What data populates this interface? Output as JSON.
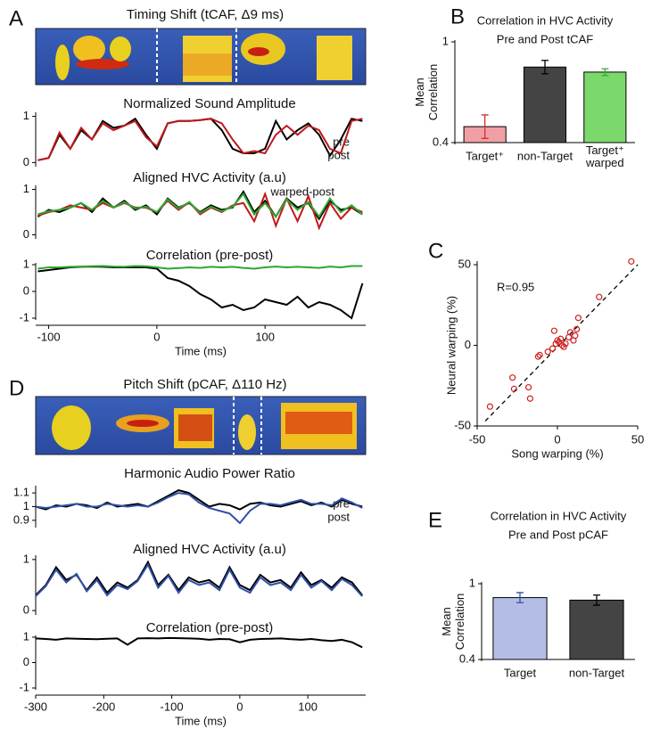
{
  "panels": [
    {
      "label": "A",
      "title": "Timing Shift (tCAF,  Δ9 ms)"
    },
    {
      "label": "D",
      "title": "Pitch Shift (pCAF,  Δ110 Hz)"
    }
  ],
  "chart_data": [
    {
      "type": "line",
      "title": "Normalized Sound Amplitude",
      "x": [
        -110,
        -100,
        -90,
        -80,
        -70,
        -60,
        -50,
        -40,
        -30,
        -20,
        -10,
        0,
        10,
        20,
        30,
        40,
        50,
        60,
        70,
        80,
        90,
        100,
        110,
        120,
        130,
        140,
        150,
        160,
        170,
        180,
        190
      ],
      "xlim": [
        -112,
        193
      ],
      "ylim": [
        -0.05,
        1.05
      ],
      "yticks": [
        0,
        1
      ],
      "series": [
        {
          "name": "pre",
          "color": "#000000",
          "values": [
            0.05,
            0.1,
            0.6,
            0.3,
            0.7,
            0.5,
            0.9,
            0.75,
            0.8,
            0.95,
            0.6,
            0.3,
            0.85,
            0.9,
            0.9,
            0.92,
            0.95,
            0.7,
            0.3,
            0.2,
            0.2,
            0.3,
            0.9,
            0.5,
            0.7,
            0.85,
            0.6,
            0.15,
            0.5,
            0.95,
            0.9
          ]
        },
        {
          "name": "post",
          "color": "#c0181c",
          "values": [
            0.05,
            0.1,
            0.65,
            0.3,
            0.75,
            0.5,
            0.85,
            0.7,
            0.8,
            0.9,
            0.55,
            0.35,
            0.85,
            0.9,
            0.9,
            0.92,
            0.95,
            0.85,
            0.5,
            0.2,
            0.25,
            0.2,
            0.6,
            0.8,
            0.6,
            0.8,
            0.7,
            0.3,
            0.2,
            0.9,
            0.95
          ]
        }
      ]
    },
    {
      "type": "line",
      "title": "Aligned HVC Activity (a.u)",
      "x": [
        -110,
        -100,
        -90,
        -80,
        -70,
        -60,
        -50,
        -40,
        -30,
        -20,
        -10,
        0,
        10,
        20,
        30,
        40,
        50,
        60,
        70,
        80,
        90,
        100,
        110,
        120,
        130,
        140,
        150,
        160,
        170,
        180,
        190
      ],
      "xlim": [
        -112,
        193
      ],
      "ylim": [
        -0.05,
        1.05
      ],
      "yticks": [
        0,
        1
      ],
      "series": [
        {
          "color": "#000000",
          "values": [
            0.4,
            0.55,
            0.5,
            0.6,
            0.7,
            0.5,
            0.8,
            0.6,
            0.75,
            0.55,
            0.65,
            0.45,
            0.8,
            0.6,
            0.7,
            0.5,
            0.65,
            0.55,
            0.6,
            0.95,
            0.5,
            0.75,
            0.4,
            0.8,
            0.6,
            0.7,
            0.35,
            0.75,
            0.55,
            0.6,
            0.45
          ]
        },
        {
          "color": "#c0181c",
          "values": [
            0.42,
            0.5,
            0.55,
            0.65,
            0.6,
            0.55,
            0.7,
            0.6,
            0.7,
            0.6,
            0.6,
            0.5,
            0.75,
            0.55,
            0.72,
            0.45,
            0.6,
            0.5,
            0.65,
            0.7,
            0.3,
            0.9,
            0.2,
            0.8,
            0.3,
            0.85,
            0.15,
            0.7,
            0.35,
            0.6,
            0.5
          ]
        },
        {
          "name": "warped-post",
          "color": "#2ea82e",
          "values": [
            0.45,
            0.52,
            0.55,
            0.6,
            0.7,
            0.55,
            0.75,
            0.6,
            0.72,
            0.58,
            0.62,
            0.5,
            0.78,
            0.58,
            0.72,
            0.48,
            0.62,
            0.52,
            0.62,
            0.9,
            0.45,
            0.7,
            0.4,
            0.78,
            0.55,
            0.72,
            0.4,
            0.8,
            0.5,
            0.65,
            0.45
          ]
        }
      ]
    },
    {
      "type": "line",
      "title": "Correlation (pre-post)",
      "xlabel": "Time (ms)",
      "x": [
        -110,
        -100,
        -90,
        -80,
        -70,
        -60,
        -50,
        -40,
        -30,
        -20,
        -10,
        0,
        10,
        20,
        30,
        40,
        50,
        60,
        70,
        80,
        90,
        100,
        110,
        120,
        130,
        140,
        150,
        160,
        170,
        180,
        190
      ],
      "xlim": [
        -112,
        193
      ],
      "xticks": [
        -100,
        0,
        100
      ],
      "ylim": [
        -1,
        1
      ],
      "yticks": [
        -1,
        0,
        1
      ],
      "series": [
        {
          "color": "#000000",
          "values": [
            0.75,
            0.8,
            0.85,
            0.9,
            0.92,
            0.93,
            0.92,
            0.9,
            0.9,
            0.9,
            0.9,
            0.85,
            0.5,
            0.4,
            0.2,
            -0.1,
            -0.3,
            -0.6,
            -0.5,
            -0.7,
            -0.6,
            -0.3,
            -0.4,
            -0.5,
            -0.2,
            -0.6,
            -0.4,
            -0.5,
            -0.7,
            -1,
            0.3
          ]
        },
        {
          "color": "#2ea82e",
          "values": [
            0.85,
            0.9,
            0.9,
            0.92,
            0.93,
            0.94,
            0.95,
            0.93,
            0.92,
            0.95,
            0.94,
            0.9,
            0.85,
            0.87,
            0.9,
            0.88,
            0.92,
            0.9,
            0.92,
            0.88,
            0.85,
            0.9,
            0.93,
            0.9,
            0.92,
            0.9,
            0.88,
            0.93,
            0.9,
            0.95,
            0.95
          ]
        }
      ]
    },
    {
      "type": "bar",
      "panel": "B",
      "title": "Correlation in HVC Activity",
      "subtitle": "Pre and Post tCAF",
      "ylabel": "Mean Correlation",
      "categories": [
        "Target⁺",
        "non-Target",
        "Target⁺ warped"
      ],
      "values": [
        0.495,
        0.85,
        0.82
      ],
      "errors": [
        0.07,
        0.04,
        0.02
      ],
      "colors": [
        "#f0a0a4",
        "#444444",
        "#7bd96b"
      ],
      "error_colors": [
        "#d03030",
        "#000000",
        "#30b030"
      ],
      "ylim": [
        0.4,
        1
      ],
      "yticks": [
        0.4,
        1
      ]
    },
    {
      "type": "scatter",
      "panel": "C",
      "xlabel": "Song warping (%)",
      "ylabel": "Neural warping (%)",
      "annotation": "R=0.95",
      "color": "#d02020",
      "x": [
        46,
        26,
        13,
        12,
        11,
        10,
        8,
        5,
        3,
        2,
        1,
        0,
        -1,
        -3,
        -6,
        -2,
        -12,
        -17,
        -18,
        -27,
        -28,
        -42,
        -11,
        4,
        7
      ],
      "y": [
        52,
        30,
        17,
        10,
        6,
        3,
        8,
        1,
        0,
        4,
        2,
        3,
        1,
        -2,
        -4,
        9,
        -7,
        -33,
        -26,
        -27,
        -20,
        -38,
        -6,
        -1,
        5
      ],
      "fit": {
        "x": [
          -45,
          50
        ],
        "y": [
          -47,
          50
        ]
      },
      "xlim": [
        -50,
        50
      ],
      "xticks": [
        -50,
        0,
        50
      ],
      "ylim": [
        -50,
        50
      ],
      "yticks": [
        -50,
        0,
        50
      ]
    },
    {
      "type": "line",
      "title": "Harmonic Audio Power Ratio",
      "x": [
        -300,
        -285,
        -270,
        -255,
        -240,
        -225,
        -210,
        -195,
        -180,
        -165,
        -150,
        -135,
        -120,
        -105,
        -90,
        -75,
        -60,
        -45,
        -30,
        -15,
        0,
        15,
        30,
        45,
        60,
        75,
        90,
        105,
        120,
        135,
        150,
        165,
        180
      ],
      "xlim": [
        -300,
        185
      ],
      "ylim": [
        0.86,
        1.14
      ],
      "yticks": [
        0.9,
        1,
        1.1
      ],
      "series": [
        {
          "name": "pre",
          "color": "#000000",
          "values": [
            1,
            0.98,
            1.01,
            1.0,
            1.02,
            1.01,
            0.99,
            1.03,
            1.0,
            1.01,
            1.02,
            1.0,
            1.04,
            1.08,
            1.12,
            1.1,
            1.05,
            1.0,
            1.02,
            1.01,
            0.98,
            1.02,
            1.03,
            1.01,
            1.0,
            1.02,
            1.04,
            1.01,
            1.03,
            1.0,
            1.05,
            1.02,
            1.0
          ]
        },
        {
          "name": "post",
          "color": "#3050a8",
          "values": [
            1,
            0.99,
            1.0,
            1.01,
            1.02,
            1.0,
            1.0,
            1.02,
            1.01,
            1.0,
            1.01,
            1.0,
            1.03,
            1.07,
            1.1,
            1.09,
            1.03,
            0.99,
            0.97,
            0.95,
            0.88,
            0.97,
            1.02,
            1.02,
            1.01,
            1.03,
            1.05,
            1.02,
            1.02,
            1.01,
            1.06,
            1.03,
            0.99
          ]
        }
      ]
    },
    {
      "type": "line",
      "title": "Aligned HVC Activity (a.u)",
      "x": [
        -300,
        -285,
        -270,
        -255,
        -240,
        -225,
        -210,
        -195,
        -180,
        -165,
        -150,
        -135,
        -120,
        -105,
        -90,
        -75,
        -60,
        -45,
        -30,
        -15,
        0,
        15,
        30,
        45,
        60,
        75,
        90,
        105,
        120,
        135,
        150,
        165,
        180
      ],
      "xlim": [
        -300,
        185
      ],
      "ylim": [
        -0.05,
        1.05
      ],
      "yticks": [
        0,
        1
      ],
      "series": [
        {
          "color": "#000000",
          "values": [
            0.3,
            0.5,
            0.85,
            0.6,
            0.7,
            0.4,
            0.65,
            0.35,
            0.55,
            0.45,
            0.6,
            0.95,
            0.5,
            0.7,
            0.4,
            0.65,
            0.55,
            0.6,
            0.45,
            0.85,
            0.5,
            0.4,
            0.7,
            0.55,
            0.6,
            0.45,
            0.75,
            0.5,
            0.6,
            0.45,
            0.65,
            0.55,
            0.3
          ]
        },
        {
          "color": "#3050a8",
          "values": [
            0.28,
            0.48,
            0.8,
            0.55,
            0.72,
            0.38,
            0.6,
            0.3,
            0.5,
            0.42,
            0.58,
            0.9,
            0.45,
            0.68,
            0.35,
            0.6,
            0.5,
            0.55,
            0.4,
            0.8,
            0.45,
            0.35,
            0.65,
            0.5,
            0.55,
            0.4,
            0.7,
            0.45,
            0.58,
            0.4,
            0.62,
            0.5,
            0.28
          ]
        }
      ]
    },
    {
      "type": "line",
      "title": "Correlation (pre-post)",
      "xlabel": "Time (ms)",
      "x": [
        -300,
        -285,
        -270,
        -255,
        -240,
        -225,
        -210,
        -195,
        -180,
        -165,
        -150,
        -135,
        -120,
        -105,
        -90,
        -75,
        -60,
        -45,
        -30,
        -15,
        0,
        15,
        30,
        45,
        60,
        75,
        90,
        105,
        120,
        135,
        150,
        165,
        180
      ],
      "xlim": [
        -300,
        185
      ],
      "xticks": [
        -300,
        -200,
        -100,
        0,
        100
      ],
      "ylim": [
        -1,
        1
      ],
      "yticks": [
        -1,
        0,
        1
      ],
      "series": [
        {
          "color": "#000000",
          "values": [
            0.95,
            0.93,
            0.9,
            0.95,
            0.94,
            0.93,
            0.92,
            0.94,
            0.95,
            0.7,
            0.95,
            0.96,
            0.95,
            0.97,
            0.96,
            0.95,
            0.94,
            0.9,
            0.93,
            0.92,
            0.8,
            0.9,
            0.93,
            0.94,
            0.95,
            0.92,
            0.9,
            0.93,
            0.88,
            0.85,
            0.9,
            0.8,
            0.6
          ]
        }
      ]
    },
    {
      "type": "bar",
      "panel": "E",
      "title": "Correlation in HVC Activity",
      "subtitle": "Pre and Post pCAF",
      "ylabel": "Mean Correlation",
      "categories": [
        "Target",
        "non-Target"
      ],
      "values": [
        0.89,
        0.87
      ],
      "errors": [
        0.04,
        0.04
      ],
      "colors": [
        "#b3bde6",
        "#444444"
      ],
      "error_colors": [
        "#3050a8",
        "#000000"
      ],
      "ylim": [
        0.4,
        1
      ],
      "yticks": [
        0.4,
        1
      ]
    }
  ]
}
